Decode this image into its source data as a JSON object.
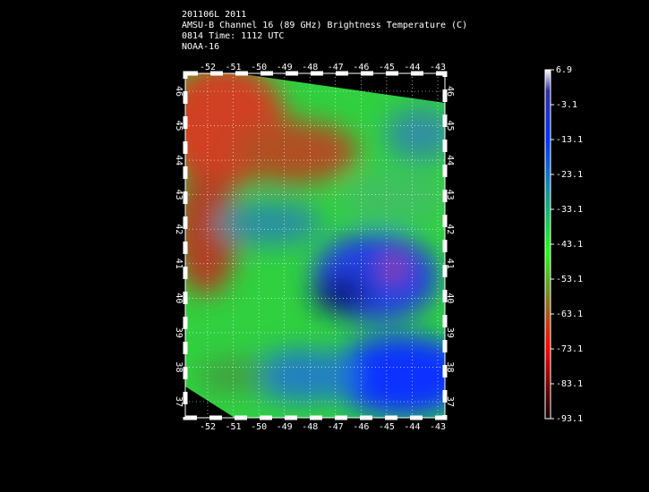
{
  "header": {
    "lines": [
      "201106L 2011",
      "AMSU-B Channel 16 (89 GHz) Brightness Temperature (C)",
      "0814 Time: 1112 UTC",
      "NOAA-16"
    ]
  },
  "map": {
    "lon_ticks": [
      -52,
      -51,
      -50,
      -49,
      -48,
      -47,
      -46,
      -45,
      -44,
      -43
    ],
    "lat_ticks": [
      46,
      45,
      44,
      43,
      42,
      41,
      40,
      39,
      38,
      37
    ]
  },
  "colorbar": {
    "ticks": [
      6.9,
      -3.1,
      -13.1,
      -23.1,
      -33.1,
      -43.1,
      -53.1,
      -63.1,
      -73.1,
      -83.1,
      -93.1
    ]
  }
}
